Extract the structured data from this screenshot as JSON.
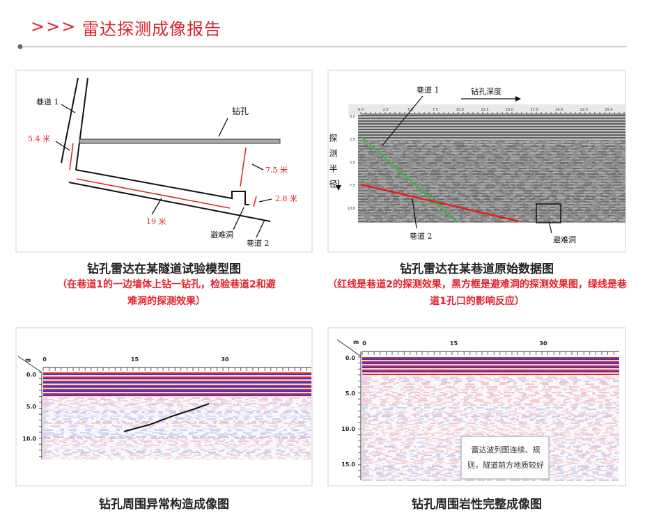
{
  "header": {
    "marker": ">>>",
    "title": "雷达探测成像报告"
  },
  "figures": [
    {
      "caption": "钻孔雷达在某隧道试验模型图",
      "note": "（在巷道1的一边墙体上钻一钻孔，检验巷道2和避难洞的探测效果）",
      "labels": [
        "巷道 1",
        "钻孔",
        "5.4 米",
        "7.5 米",
        "2.8 米",
        "19 米",
        "避难洞",
        "巷道 2"
      ]
    },
    {
      "caption": "钻孔雷达在某巷道原始数据图",
      "note": "（红线是巷道2的探测效果，黑方框是避难洞的探测效果图，绿线是巷道1孔口的影响反应）",
      "labels": [
        "巷道 1",
        "钻孔深度",
        "探测半径",
        "巷道 2",
        "避难洞"
      ],
      "x_ticks": [
        "0.0",
        "2.5",
        "5.0",
        "7.5",
        "10.0",
        "12.5",
        "15.0",
        "17.5",
        "20.0",
        "22.5",
        "25.0"
      ],
      "y_ticks": [
        "0.0",
        "2.5",
        "5.0",
        "7.5",
        "10.0"
      ]
    },
    {
      "caption": "钻孔周围异常构造成像图",
      "unit": "m",
      "x_ticks": [
        "0",
        "15",
        "30"
      ],
      "y_ticks": [
        "0.0",
        "5.0",
        "10.0"
      ]
    },
    {
      "caption": "钻孔周围岩性完整成像图",
      "unit": "m",
      "x_ticks": [
        "0",
        "15",
        "30"
      ],
      "y_ticks": [
        "0.0",
        "5.0",
        "10.0",
        "15.0"
      ],
      "annotation": "雷达波列图连续、规则，隧道前方地质较好"
    }
  ]
}
